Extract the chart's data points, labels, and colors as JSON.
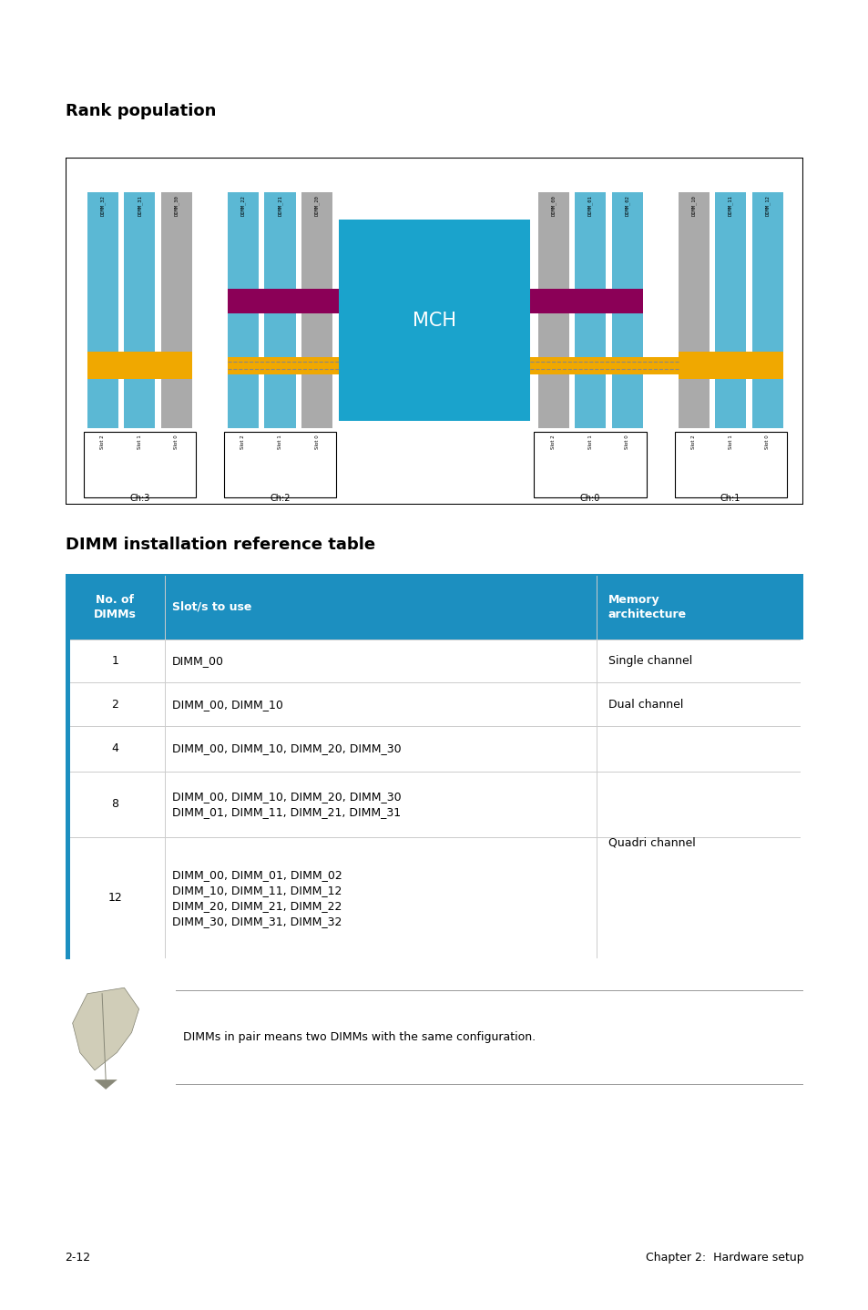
{
  "title_rank": "Rank population",
  "title_dimm": "DIMM installation reference table",
  "page_label": "2-12",
  "page_right": "Chapter 2:  Hardware setup",
  "note_text": "DIMMs in pair means two DIMMs with the same configuration.",
  "mch_color": "#1AA3CC",
  "dimm_blue_color": "#5BB8D4",
  "dimm_gray_color": "#AAAAAA",
  "bus_yellow_color": "#F0A800",
  "bus_purple_color": "#8B0057",
  "header_bg": "#1C8FC0",
  "header_text": "#FFFFFF",
  "border_blue": "#1C8FC0",
  "ch3_dimms": [
    {
      "label": "DIMM_32",
      "color": "#5BB8D4"
    },
    {
      "label": "DIMM_31",
      "color": "#5BB8D4"
    },
    {
      "label": "DIMM_30",
      "color": "#AAAAAA"
    }
  ],
  "ch2_dimms": [
    {
      "label": "DIMM_22",
      "color": "#5BB8D4"
    },
    {
      "label": "DIMM_21",
      "color": "#5BB8D4"
    },
    {
      "label": "DIMM_20",
      "color": "#AAAAAA"
    }
  ],
  "ch0_dimms": [
    {
      "label": "DIMM_00",
      "color": "#AAAAAA"
    },
    {
      "label": "DIMM_01",
      "color": "#5BB8D4"
    },
    {
      "label": "DIMM_02",
      "color": "#5BB8D4"
    }
  ],
  "ch1_dimms": [
    {
      "label": "DIMM_10",
      "color": "#AAAAAA"
    },
    {
      "label": "DIMM_11",
      "color": "#5BB8D4"
    },
    {
      "label": "DIMM_12",
      "color": "#5BB8D4"
    }
  ],
  "table_header": [
    "No. of\nDIMMs",
    "Slot/s to use",
    "Memory\narchitecture"
  ],
  "table_rows": [
    [
      "1",
      "DIMM_00",
      "Single channel"
    ],
    [
      "2",
      "DIMM_00, DIMM_10",
      "Dual channel"
    ],
    [
      "4",
      "DIMM_00, DIMM_10, DIMM_20, DIMM_30",
      ""
    ],
    [
      "8",
      "DIMM_00, DIMM_10, DIMM_20, DIMM_30\nDIMM_01, DIMM_11, DIMM_21, DIMM_31",
      ""
    ],
    [
      "12",
      "DIMM_00, DIMM_01, DIMM_02\nDIMM_10, DIMM_11, DIMM_12\nDIMM_20, DIMM_21, DIMM_22\nDIMM_30, DIMM_31, DIMM_32",
      "Quadri channel"
    ]
  ]
}
